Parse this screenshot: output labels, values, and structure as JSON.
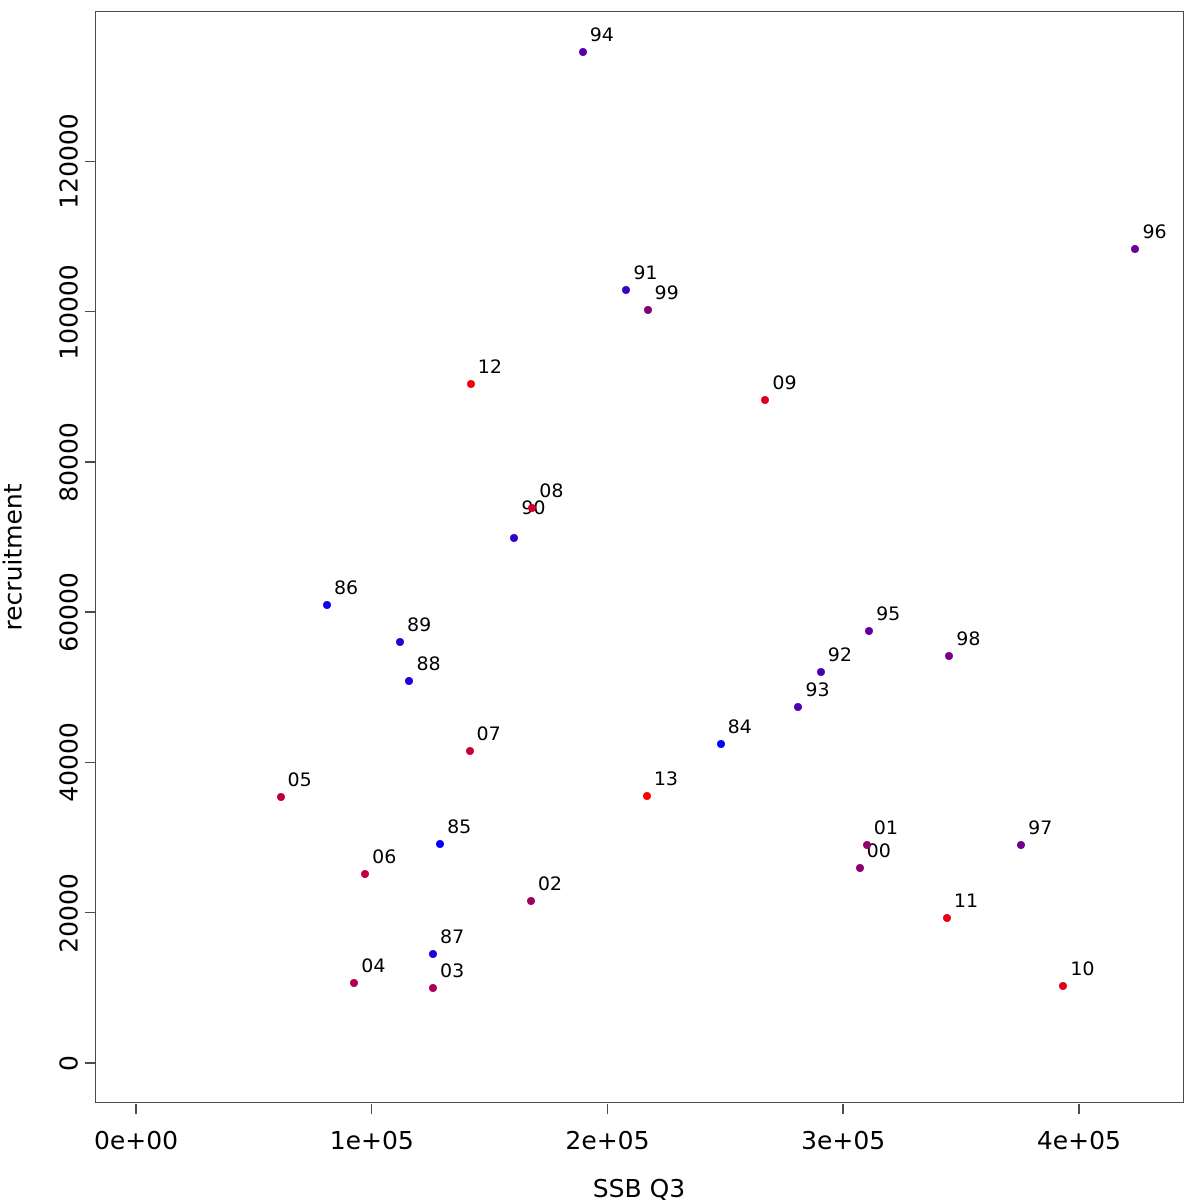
{
  "chart_data": {
    "type": "scatter",
    "title": "",
    "xlabel": "SSB Q3",
    "ylabel": "recruitment",
    "xlim": [
      -17400,
      444800
    ],
    "ylim": [
      -5320,
      140000
    ],
    "grid": false,
    "legend": "none",
    "x_ticks": [
      {
        "value": 0,
        "label": "0e+00"
      },
      {
        "value": 100000,
        "label": "1e+05"
      },
      {
        "value": 200000,
        "label": "2e+05"
      },
      {
        "value": 300000,
        "label": "3e+05"
      },
      {
        "value": 400000,
        "label": "4e+05"
      }
    ],
    "y_ticks": [
      {
        "value": 0,
        "label": "0"
      },
      {
        "value": 20000,
        "label": "20000"
      },
      {
        "value": 40000,
        "label": "40000"
      },
      {
        "value": 60000,
        "label": "60000"
      },
      {
        "value": 80000,
        "label": "80000"
      },
      {
        "value": 100000,
        "label": "100000"
      },
      {
        "value": 120000,
        "label": "120000"
      }
    ],
    "colors": {
      "background": "#ffffff",
      "axis": "#4c4c4c",
      "text": "#000000",
      "ramp_start": "#0000FF",
      "ramp_end": "#FF0000"
    },
    "points": [
      {
        "label": "84",
        "x": 248000,
        "y": 42500,
        "color": "#0000FF"
      },
      {
        "label": "85",
        "x": 129000,
        "y": 29200,
        "color": "#0900F6"
      },
      {
        "label": "86",
        "x": 81000,
        "y": 61000,
        "color": "#1200ED"
      },
      {
        "label": "87",
        "x": 126000,
        "y": 14500,
        "color": "#1A00E5"
      },
      {
        "label": "88",
        "x": 116000,
        "y": 50800,
        "color": "#2300DC"
      },
      {
        "label": "89",
        "x": 112000,
        "y": 56000,
        "color": "#2C00D3"
      },
      {
        "label": "90",
        "x": 160500,
        "y": 69900,
        "color": "#3500CA",
        "label_dy": -13
      },
      {
        "label": "91",
        "x": 208000,
        "y": 102900,
        "color": "#3E00C1"
      },
      {
        "label": "92",
        "x": 290500,
        "y": 52000,
        "color": "#4600B9"
      },
      {
        "label": "93",
        "x": 281000,
        "y": 47400,
        "color": "#4F00B0"
      },
      {
        "label": "94",
        "x": 189500,
        "y": 134600,
        "color": "#5800A7"
      },
      {
        "label": "95",
        "x": 311000,
        "y": 57500,
        "color": "#61009E"
      },
      {
        "label": "96",
        "x": 424000,
        "y": 108300,
        "color": "#6A0095"
      },
      {
        "label": "97",
        "x": 375500,
        "y": 29000,
        "color": "#72008D"
      },
      {
        "label": "98",
        "x": 345000,
        "y": 54100,
        "color": "#7B0084"
      },
      {
        "label": "99",
        "x": 217000,
        "y": 100200,
        "color": "#84007B"
      },
      {
        "label": "00",
        "x": 307000,
        "y": 26000,
        "color": "#8D0072"
      },
      {
        "label": "01",
        "x": 310000,
        "y": 29000,
        "color": "#960069"
      },
      {
        "label": "02",
        "x": 167500,
        "y": 21600,
        "color": "#9E0061"
      },
      {
        "label": "03",
        "x": 126000,
        "y": 10000,
        "color": "#A70058"
      },
      {
        "label": "04",
        "x": 92600,
        "y": 10700,
        "color": "#B0004F"
      },
      {
        "label": "05",
        "x": 61300,
        "y": 35400,
        "color": "#B90046"
      },
      {
        "label": "06",
        "x": 97200,
        "y": 25100,
        "color": "#C2003D"
      },
      {
        "label": "07",
        "x": 141500,
        "y": 41500,
        "color": "#CA0035"
      },
      {
        "label": "08",
        "x": 168100,
        "y": 73800,
        "color": "#D3002C"
      },
      {
        "label": "09",
        "x": 267000,
        "y": 88200,
        "color": "#DC0023"
      },
      {
        "label": "10",
        "x": 393400,
        "y": 10300,
        "color": "#E5001A"
      },
      {
        "label": "11",
        "x": 344000,
        "y": 19300,
        "color": "#ED0012"
      },
      {
        "label": "12",
        "x": 142000,
        "y": 90300,
        "color": "#F60009"
      },
      {
        "label": "13",
        "x": 216700,
        "y": 35500,
        "color": "#FF0000"
      }
    ]
  }
}
